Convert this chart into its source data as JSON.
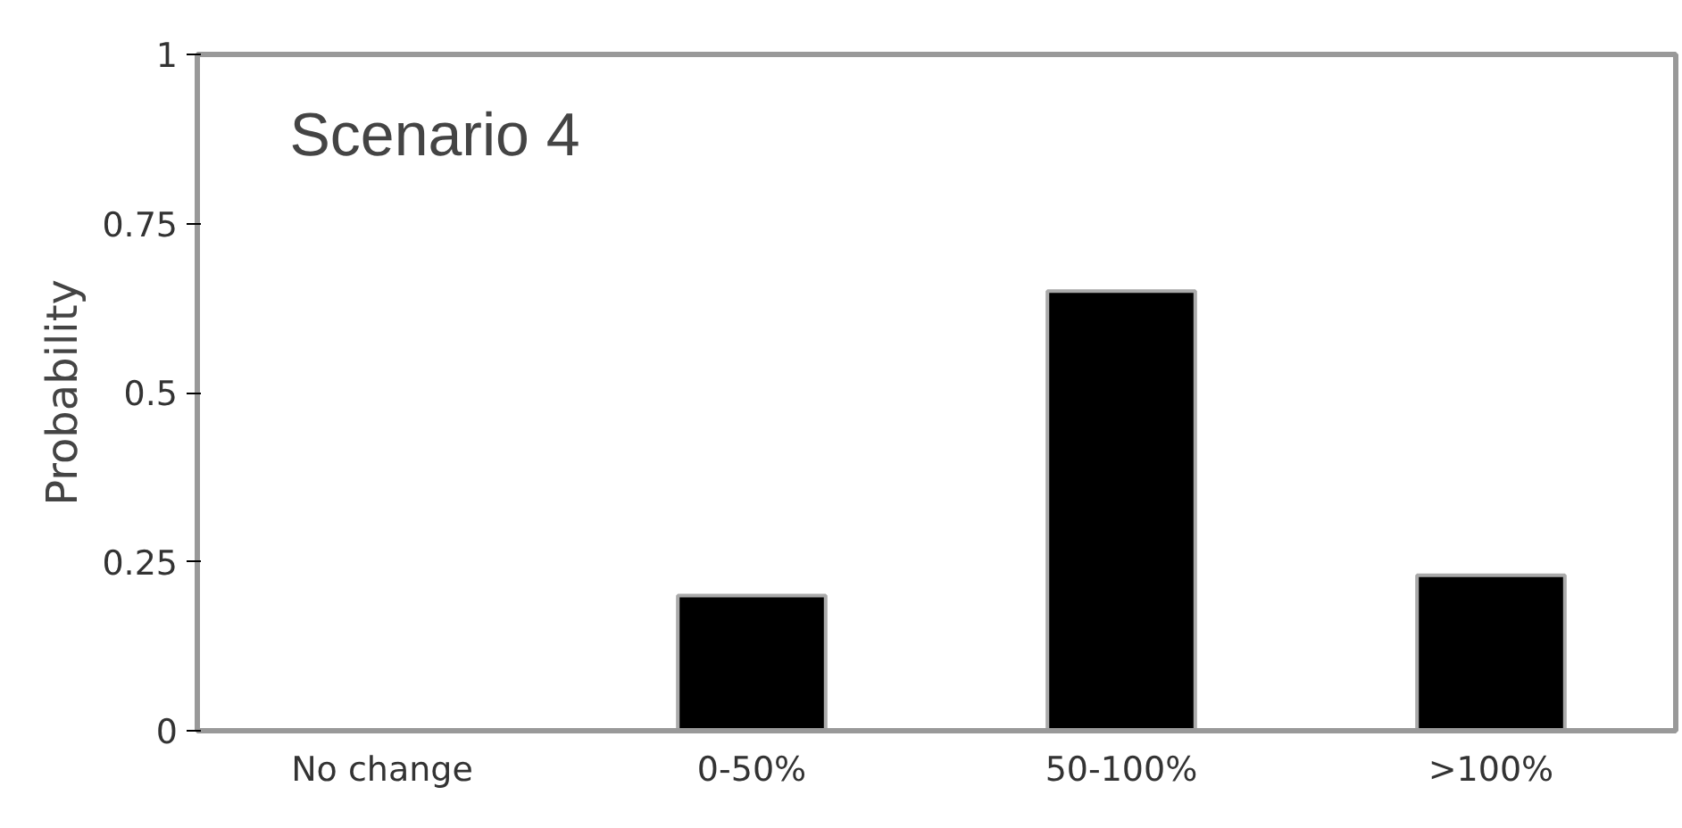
{
  "chart_data": {
    "type": "bar",
    "title": "Scenario 4",
    "ylabel": "Probability",
    "categories": [
      "No change",
      "0-50%",
      "50-100%",
      ">100%"
    ],
    "values": [
      0,
      0.2,
      0.65,
      0.23
    ],
    "color": "#000000",
    "ylim": [
      0,
      1
    ],
    "yticks": [
      0,
      0.25,
      0.5,
      0.75,
      1
    ],
    "grid": false
  }
}
